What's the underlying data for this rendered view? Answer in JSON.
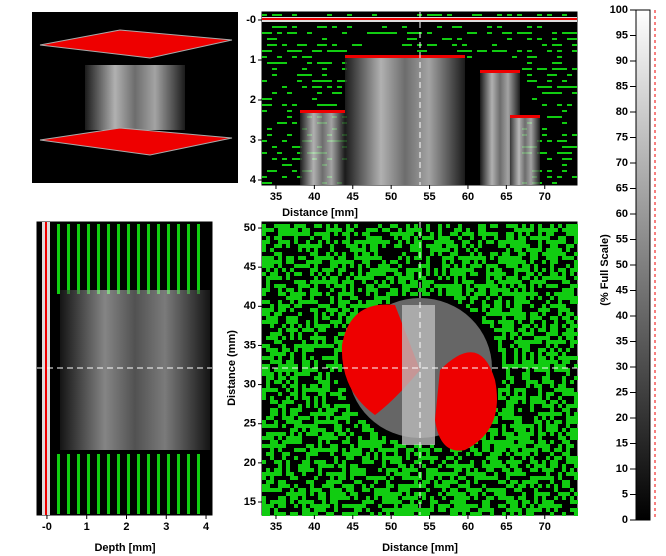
{
  "bscan": {
    "xlabel": "Distance [mm]",
    "xlim": [
      33.18,
      74.2
    ],
    "xticks": [
      35,
      40,
      45,
      50,
      55,
      60,
      65,
      70
    ],
    "ylim": [
      -0.2,
      4.125
    ],
    "yticks": [
      {
        "value": 0,
        "label": "-0"
      },
      1,
      2,
      3,
      4
    ]
  },
  "dscan": {
    "xlabel": "Depth [mm]",
    "xlim": [
      -0.25,
      4.15
    ],
    "xticks": [
      {
        "value": 0,
        "label": "-0"
      },
      1,
      2,
      3,
      4
    ]
  },
  "cscan": {
    "xlabel": "Distance [mm]",
    "ylabel": "Distance (mm)",
    "xlim": [
      33.18,
      74.2
    ],
    "xticks": [
      35,
      40,
      45,
      50,
      55,
      60,
      65,
      70
    ],
    "ylim": [
      13.34,
      50.77
    ],
    "yticks": [
      15,
      20,
      25,
      30,
      35,
      40,
      45,
      50
    ]
  },
  "colorbar": {
    "label": "(% Full Scale)",
    "ylim": [
      0,
      100
    ],
    "yticks": [
      0,
      5,
      10,
      15,
      20,
      25,
      30,
      35,
      40,
      45,
      50,
      55,
      60,
      65,
      70,
      75,
      80,
      85,
      90,
      95,
      100
    ]
  }
}
